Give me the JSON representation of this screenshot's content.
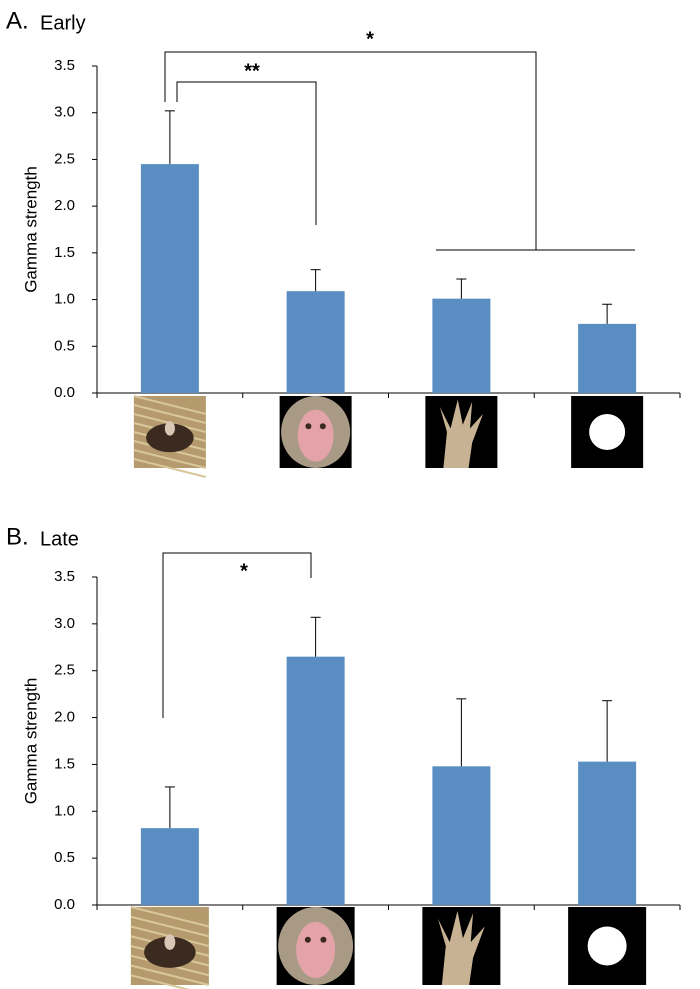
{
  "chart_data": [
    {
      "type": "bar",
      "label": "A.",
      "title": "Early",
      "y_label": "Gamma strength",
      "categories": [
        null,
        null,
        null,
        null
      ],
      "values": [
        2.45,
        1.09,
        1.01,
        0.74
      ],
      "errors": [
        0.57,
        0.23,
        0.21,
        0.21
      ],
      "color": "#5a8ec2",
      "ylim": [
        0,
        3.5
      ],
      "yticks": [
        {
          "value": 0,
          "label": "0.0"
        },
        {
          "value": 0.5,
          "label": "0.5"
        },
        {
          "value": 1,
          "label": "1.0"
        },
        {
          "value": 1.5,
          "label": "1.5"
        },
        {
          "value": 2,
          "label": "2.0"
        },
        {
          "value": 2.5,
          "label": "2.5"
        },
        {
          "value": 3,
          "label": "3.0"
        },
        {
          "value": 3.5,
          "label": "3.5"
        }
      ],
      "annotations": [
        "*",
        "**"
      ]
    },
    {
      "type": "bar",
      "label": "B.",
      "title": "Late",
      "y_label": "Gamma strength",
      "categories": [
        null,
        null,
        null,
        null
      ],
      "values": [
        0.82,
        2.65,
        1.48,
        1.53
      ],
      "errors": [
        0.44,
        0.42,
        0.72,
        0.65
      ],
      "color": "#5a8ec2",
      "ylim": [
        0,
        3.5
      ],
      "yticks": [
        {
          "value": 0,
          "label": "0.0"
        },
        {
          "value": 0.5,
          "label": "0.5"
        },
        {
          "value": 1,
          "label": "1.0"
        },
        {
          "value": 1.5,
          "label": "1.5"
        },
        {
          "value": 2,
          "label": "2.0"
        },
        {
          "value": 2.5,
          "label": "2.5"
        },
        {
          "value": 3,
          "label": "3.0"
        },
        {
          "value": 3.5,
          "label": "3.5"
        }
      ],
      "annotations": [
        "*"
      ]
    }
  ]
}
